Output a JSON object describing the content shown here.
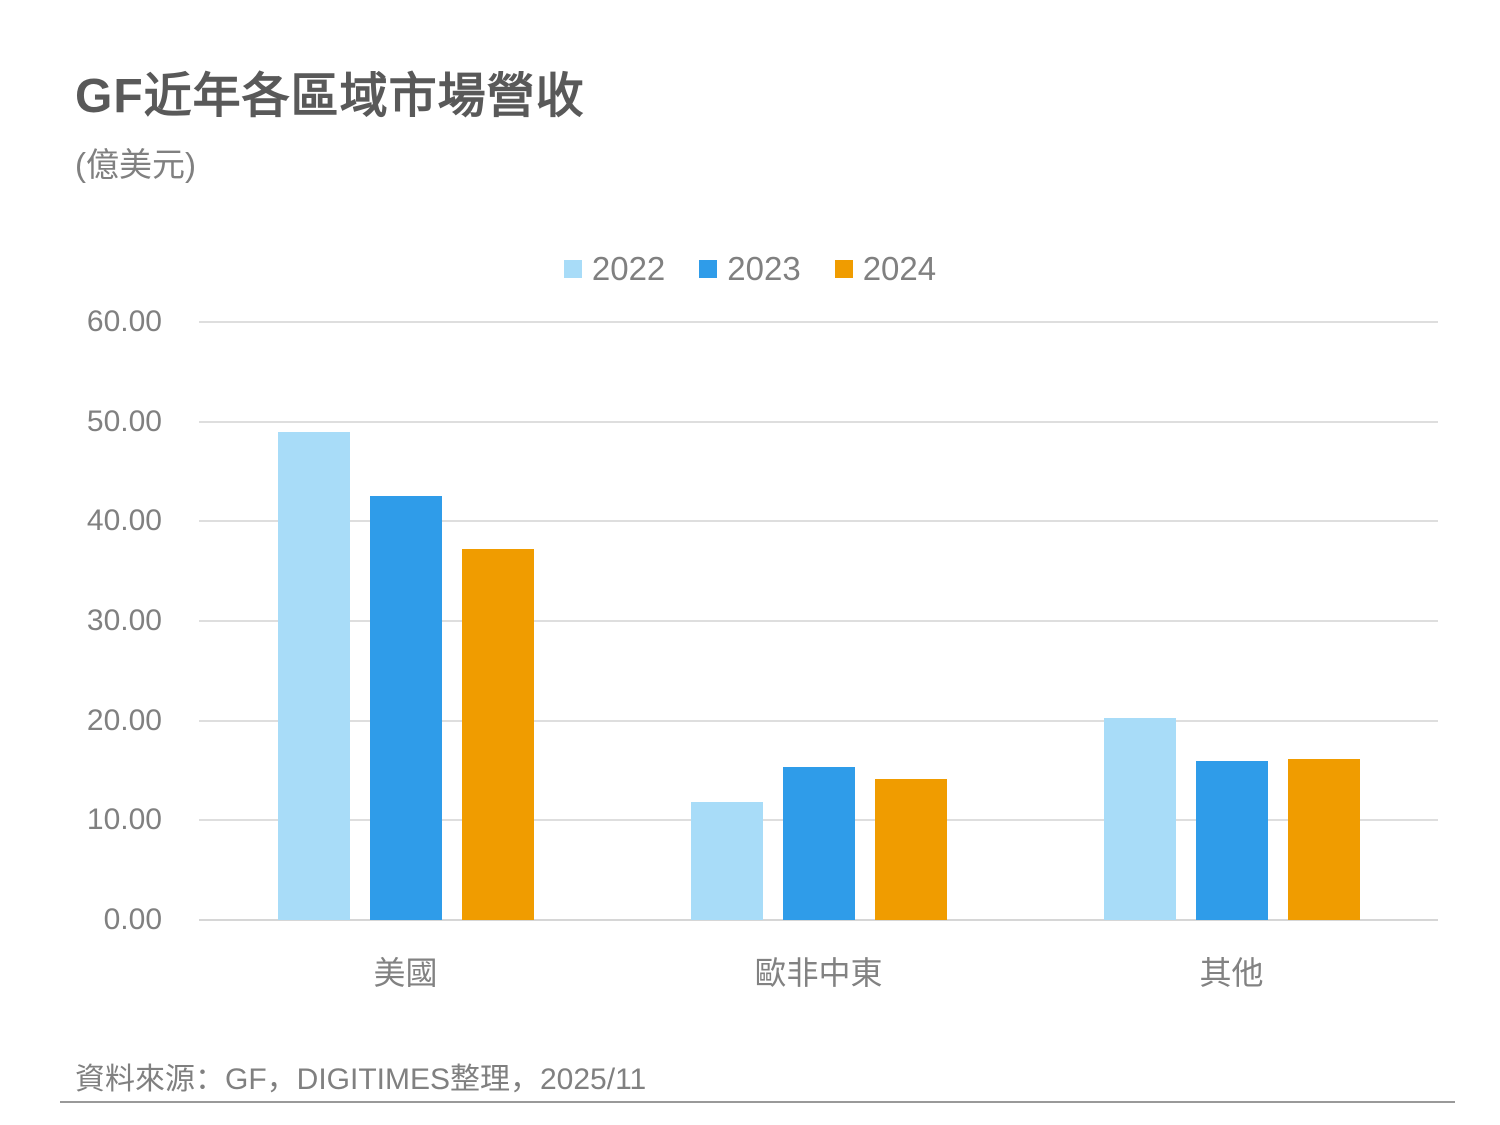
{
  "page": {
    "title": "GF近年各區域市場營收",
    "subtitle": "(億美元)",
    "source": "資料來源：GF，DIGITIMES整理，2025/11"
  },
  "colors": {
    "title_text": "#595959",
    "secondary_text": "#808080",
    "gridline": "#dedede",
    "bottom_rule": "#999999",
    "series_2022": "#a8dcf8",
    "series_2023": "#2f9ce9",
    "series_2024": "#f09c00"
  },
  "chart_data": {
    "type": "bar",
    "title": "GF近年各區域市場營收",
    "unit_label": "(億美元)",
    "xlabel": "",
    "ylabel": "",
    "categories": [
      "美國",
      "歐非中東",
      "其他"
    ],
    "series": [
      {
        "name": "2022",
        "color": "#a8dcf8",
        "values": [
          48.97,
          11.82,
          20.29
        ]
      },
      {
        "name": "2023",
        "color": "#2f9ce9",
        "values": [
          42.58,
          15.36,
          15.98
        ]
      },
      {
        "name": "2024",
        "color": "#f09c00",
        "values": [
          37.2,
          14.18,
          16.12
        ]
      }
    ],
    "ylim": [
      0,
      60
    ],
    "ytick_step": 10,
    "ytick_labels": [
      "0.00",
      "10.00",
      "20.00",
      "30.00",
      "40.00",
      "50.00",
      "60.00"
    ],
    "grid": true,
    "legend_position": "top-center"
  }
}
